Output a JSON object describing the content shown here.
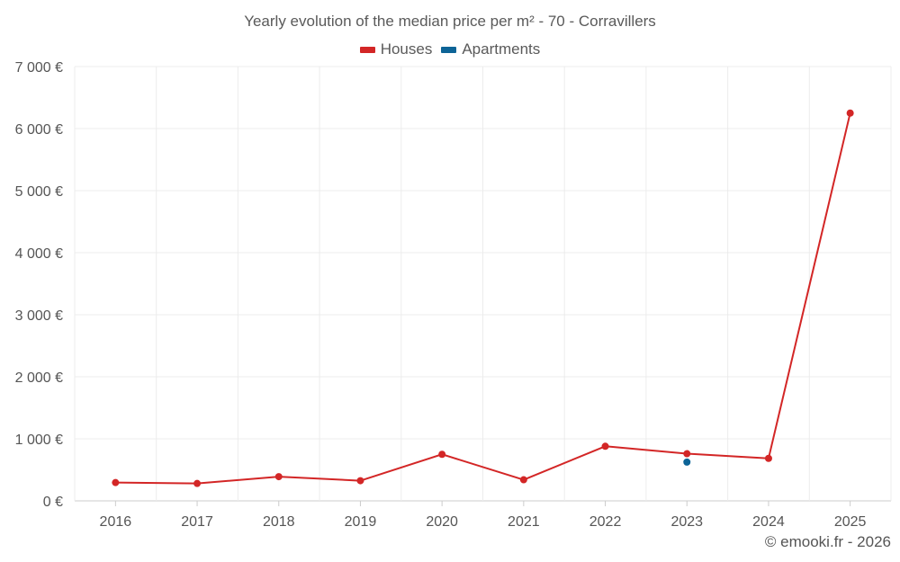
{
  "chart_data": {
    "type": "line",
    "title": "Yearly evolution of the median price per m² - 70 - Corravillers",
    "x": [
      "2016",
      "2017",
      "2018",
      "2019",
      "2020",
      "2021",
      "2022",
      "2023",
      "2024",
      "2025"
    ],
    "series": [
      {
        "name": "Houses",
        "color": "#d32626",
        "values": [
          295,
          280,
          390,
          325,
          750,
          340,
          880,
          760,
          685,
          6250
        ]
      },
      {
        "name": "Apartments",
        "color": "#0d6497",
        "values": [
          null,
          null,
          null,
          null,
          null,
          null,
          null,
          625,
          null,
          null
        ]
      }
    ],
    "y_ticks": [
      0,
      1000,
      2000,
      3000,
      4000,
      5000,
      6000,
      7000
    ],
    "y_tick_labels": [
      "0 €",
      "1 000 €",
      "2 000 €",
      "3 000 €",
      "4 000 €",
      "5 000 €",
      "6 000 €",
      "7 000 €"
    ],
    "ylim": [
      0,
      7000
    ],
    "xlabel": "",
    "ylabel": "",
    "grid": true,
    "legend_position": "top-center"
  },
  "legend": {
    "houses_label": "Houses",
    "apartments_label": "Apartments"
  },
  "credit": "© emooki.fr - 2026"
}
